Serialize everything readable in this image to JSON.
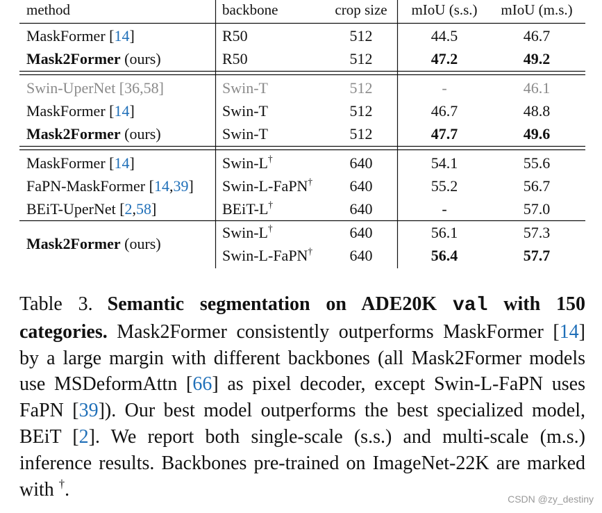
{
  "table": {
    "header": [
      "method",
      "backbone",
      "crop size",
      "mIoU (s.s.)",
      "mIoU (m.s.)"
    ],
    "groups": [
      {
        "rows": [
          {
            "cells": [
              [
                {
                  "text": "MaskFormer ["
                },
                {
                  "text": "14",
                  "link": true
                },
                {
                  "text": "]"
                }
              ],
              [
                {
                  "text": "R50"
                }
              ],
              [
                {
                  "text": "512"
                }
              ],
              [
                {
                  "text": "44.5"
                }
              ],
              [
                {
                  "text": "46.7"
                }
              ]
            ]
          },
          {
            "cells": [
              [
                {
                  "text": "Mask2Former",
                  "bold": true
                },
                {
                  "text": " (ours)"
                }
              ],
              [
                {
                  "text": "R50"
                }
              ],
              [
                {
                  "text": "512"
                }
              ],
              [
                {
                  "text": "47.2",
                  "bold": true
                }
              ],
              [
                {
                  "text": "49.2",
                  "bold": true
                }
              ]
            ]
          }
        ]
      },
      {
        "rows": [
          {
            "muted": true,
            "cells": [
              [
                {
                  "text": "Swin-UperNet ["
                },
                {
                  "text": "36",
                  "link": true
                },
                {
                  "text": ","
                },
                {
                  "text": "58",
                  "link": true
                },
                {
                  "text": "]"
                }
              ],
              [
                {
                  "text": "Swin-T"
                }
              ],
              [
                {
                  "text": "512"
                }
              ],
              [
                {
                  "text": "-"
                }
              ],
              [
                {
                  "text": "46.1"
                }
              ]
            ]
          },
          {
            "cells": [
              [
                {
                  "text": "MaskFormer ["
                },
                {
                  "text": "14",
                  "link": true
                },
                {
                  "text": "]"
                }
              ],
              [
                {
                  "text": "Swin-T"
                }
              ],
              [
                {
                  "text": "512"
                }
              ],
              [
                {
                  "text": "46.7"
                }
              ],
              [
                {
                  "text": "48.8"
                }
              ]
            ]
          },
          {
            "cells": [
              [
                {
                  "text": "Mask2Former",
                  "bold": true
                },
                {
                  "text": " (ours)"
                }
              ],
              [
                {
                  "text": "Swin-T"
                }
              ],
              [
                {
                  "text": "512"
                }
              ],
              [
                {
                  "text": "47.7",
                  "bold": true
                }
              ],
              [
                {
                  "text": "49.6",
                  "bold": true
                }
              ]
            ]
          }
        ]
      },
      {
        "rows": [
          {
            "cells": [
              [
                {
                  "text": "MaskFormer ["
                },
                {
                  "text": "14",
                  "link": true
                },
                {
                  "text": "]"
                }
              ],
              [
                {
                  "text": "Swin-L"
                },
                {
                  "text": "†",
                  "sup": true
                }
              ],
              [
                {
                  "text": "640"
                }
              ],
              [
                {
                  "text": "54.1"
                }
              ],
              [
                {
                  "text": "55.6"
                }
              ]
            ]
          },
          {
            "cells": [
              [
                {
                  "text": "FaPN-MaskFormer ["
                },
                {
                  "text": "14",
                  "link": true
                },
                {
                  "text": ","
                },
                {
                  "text": "39",
                  "link": true
                },
                {
                  "text": "]"
                }
              ],
              [
                {
                  "text": "Swin-L-FaPN"
                },
                {
                  "text": "†",
                  "sup": true
                }
              ],
              [
                {
                  "text": "640"
                }
              ],
              [
                {
                  "text": "55.2"
                }
              ],
              [
                {
                  "text": "56.7"
                }
              ]
            ]
          },
          {
            "cells": [
              [
                {
                  "text": "BEiT-UperNet ["
                },
                {
                  "text": "2",
                  "link": true
                },
                {
                  "text": ","
                },
                {
                  "text": "58",
                  "link": true
                },
                {
                  "text": "]"
                }
              ],
              [
                {
                  "text": "BEiT-L"
                },
                {
                  "text": "†",
                  "sup": true
                }
              ],
              [
                {
                  "text": "640"
                }
              ],
              [
                {
                  "text": "-"
                }
              ],
              [
                {
                  "text": "57.0"
                }
              ]
            ]
          }
        ]
      },
      {
        "rows": [
          {
            "rowspan": 2,
            "cells": [
              [
                {
                  "text": "Mask2Former",
                  "bold": true
                },
                {
                  "text": " (ours)"
                }
              ],
              [
                {
                  "text": "Swin-L"
                },
                {
                  "text": "†",
                  "sup": true
                }
              ],
              [
                {
                  "text": "640"
                }
              ],
              [
                {
                  "text": "56.1"
                }
              ],
              [
                {
                  "text": "57.3"
                }
              ]
            ]
          },
          {
            "cells": [
              [
                {
                  "text": "Swin-L-FaPN"
                },
                {
                  "text": "†",
                  "sup": true
                }
              ],
              [
                {
                  "text": "640"
                }
              ],
              [
                {
                  "text": "56.4",
                  "bold": true
                }
              ],
              [
                {
                  "text": "57.7",
                  "bold": true
                }
              ]
            ]
          }
        ]
      }
    ]
  },
  "caption": {
    "runs": [
      {
        "text": "Table 3."
      },
      {
        "text": "Semantic segmentation on ADE20K ",
        "bold": true
      },
      {
        "text": "val",
        "bold": true,
        "mono": true
      },
      {
        "text": " with 150 categories.",
        "bold": true
      },
      {
        "text": " Mask2Former consistently outperforms MaskFormer ["
      },
      {
        "text": "14",
        "link": true
      },
      {
        "text": "] by a large margin with different backbones (all Mask2Former models use MSDeformAttn ["
      },
      {
        "text": "66",
        "link": true
      },
      {
        "text": "] as pixel decoder, except Swin-L-FaPN uses FaPN ["
      },
      {
        "text": "39",
        "link": true
      },
      {
        "text": "]). Our best model outperforms the best specialized model, BEiT ["
      },
      {
        "text": "2",
        "link": true
      },
      {
        "text": "]. We report both single-scale (s.s.) and multi-scale (m.s.) inference results. Backbones pre-trained on ImageNet-22K are marked with "
      },
      {
        "text": "†",
        "sup": true
      },
      {
        "text": "."
      }
    ]
  },
  "watermark": "CSDN @zy_destiny"
}
